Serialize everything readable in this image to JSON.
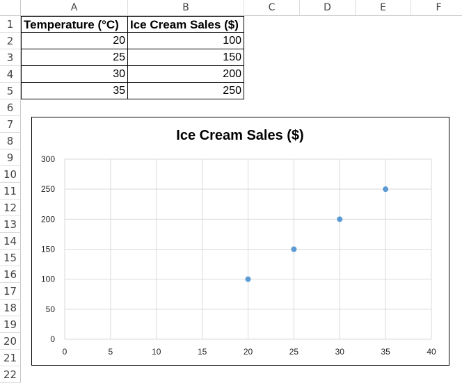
{
  "sheet": {
    "columns": [
      "A",
      "B",
      "C",
      "D",
      "E",
      "F"
    ],
    "rows": [
      "1",
      "2",
      "3",
      "4",
      "5",
      "6",
      "7",
      "8",
      "9",
      "10",
      "11",
      "12",
      "13",
      "14",
      "15",
      "16",
      "17",
      "18",
      "19",
      "20",
      "21",
      "22"
    ],
    "table": {
      "headers": [
        "Temperature (°C)",
        "Ice Cream Sales ($)"
      ],
      "data": [
        [
          "20",
          "100"
        ],
        [
          "25",
          "150"
        ],
        [
          "30",
          "200"
        ],
        [
          "35",
          "250"
        ]
      ]
    }
  },
  "chart_data": {
    "type": "scatter",
    "title": "Ice Cream Sales ($)",
    "xlabel": "",
    "ylabel": "",
    "x": [
      20,
      25,
      30,
      35
    ],
    "y": [
      100,
      150,
      200,
      250
    ],
    "xlim": [
      0,
      40
    ],
    "ylim": [
      0,
      300
    ],
    "xticks": [
      0,
      5,
      10,
      15,
      20,
      25,
      30,
      35,
      40
    ],
    "yticks": [
      0,
      50,
      100,
      150,
      200,
      250,
      300
    ],
    "grid": true,
    "legend": "none",
    "marker_color": "#5B9BD5",
    "grid_color": "#d9d9d9"
  }
}
